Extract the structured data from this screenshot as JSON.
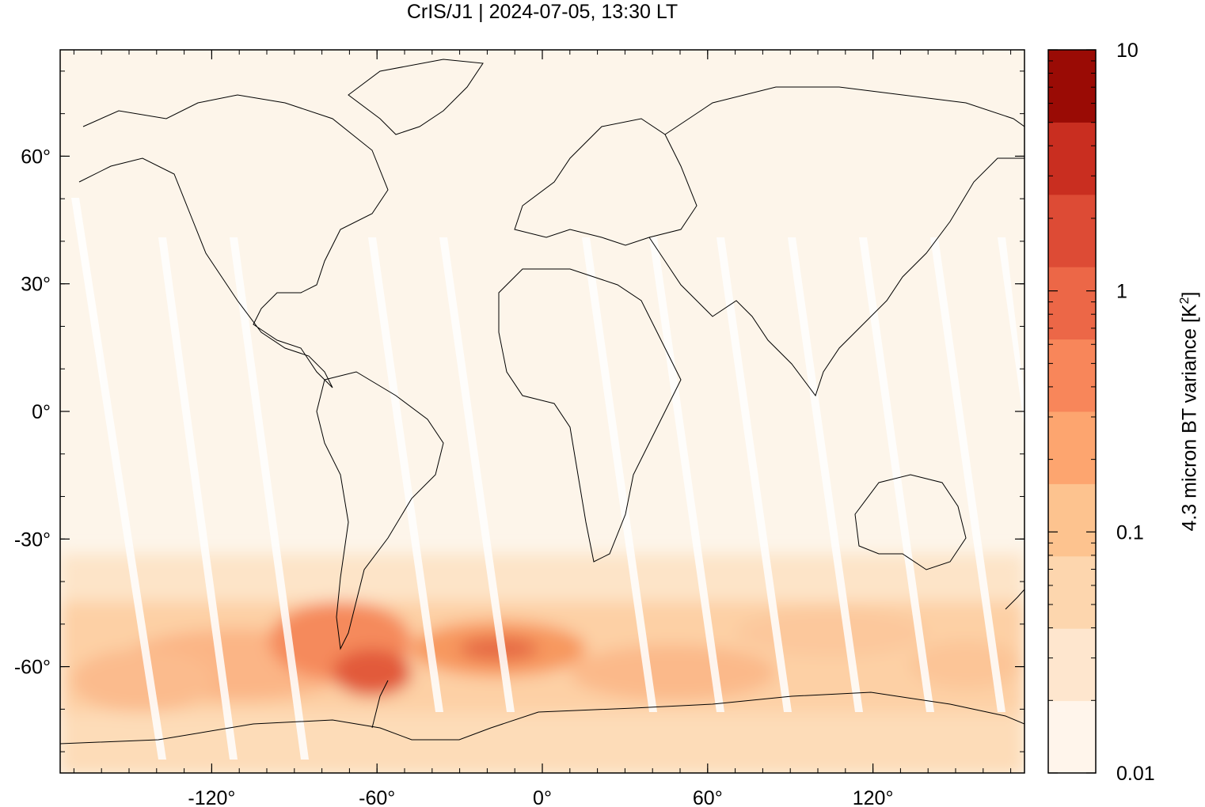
{
  "title": "CrIS/J1 | 2024-07-05, 13:30 LT",
  "map": {
    "projection": "equirectangular",
    "lon_range": [
      -175,
      175
    ],
    "lat_range": [
      -85,
      85
    ],
    "x_ticks": [
      {
        "value": -120,
        "label": "-120°"
      },
      {
        "value": -60,
        "label": "-60°"
      },
      {
        "value": 0,
        "label": "0°"
      },
      {
        "value": 60,
        "label": "60°"
      },
      {
        "value": 120,
        "label": "120°"
      }
    ],
    "y_ticks": [
      {
        "value": 60,
        "label": "60°"
      },
      {
        "value": 30,
        "label": "30°"
      },
      {
        "value": 0,
        "label": "0°"
      },
      {
        "value": -30,
        "label": "-30°"
      },
      {
        "value": -60,
        "label": "-60°"
      }
    ],
    "background_color": "#fdf5ea",
    "coastline_color": "#000000"
  },
  "colorbar": {
    "scale": "log",
    "range": [
      0.01,
      10
    ],
    "label_main": "4.3 micron BT variance [K",
    "label_sup": "2",
    "label_end": "]",
    "tick_labels": [
      {
        "value": 10,
        "label": "10"
      },
      {
        "value": 1,
        "label": "1"
      },
      {
        "value": 0.1,
        "label": "0.1"
      },
      {
        "value": 0.01,
        "label": "0.01"
      }
    ],
    "colors": [
      "#fff5eb",
      "#fee6ce",
      "#fdd6ae",
      "#fdc38f",
      "#fda56f",
      "#f8865a",
      "#ec6747",
      "#dd4b35",
      "#c92e20",
      "#9a0b05"
    ]
  }
}
